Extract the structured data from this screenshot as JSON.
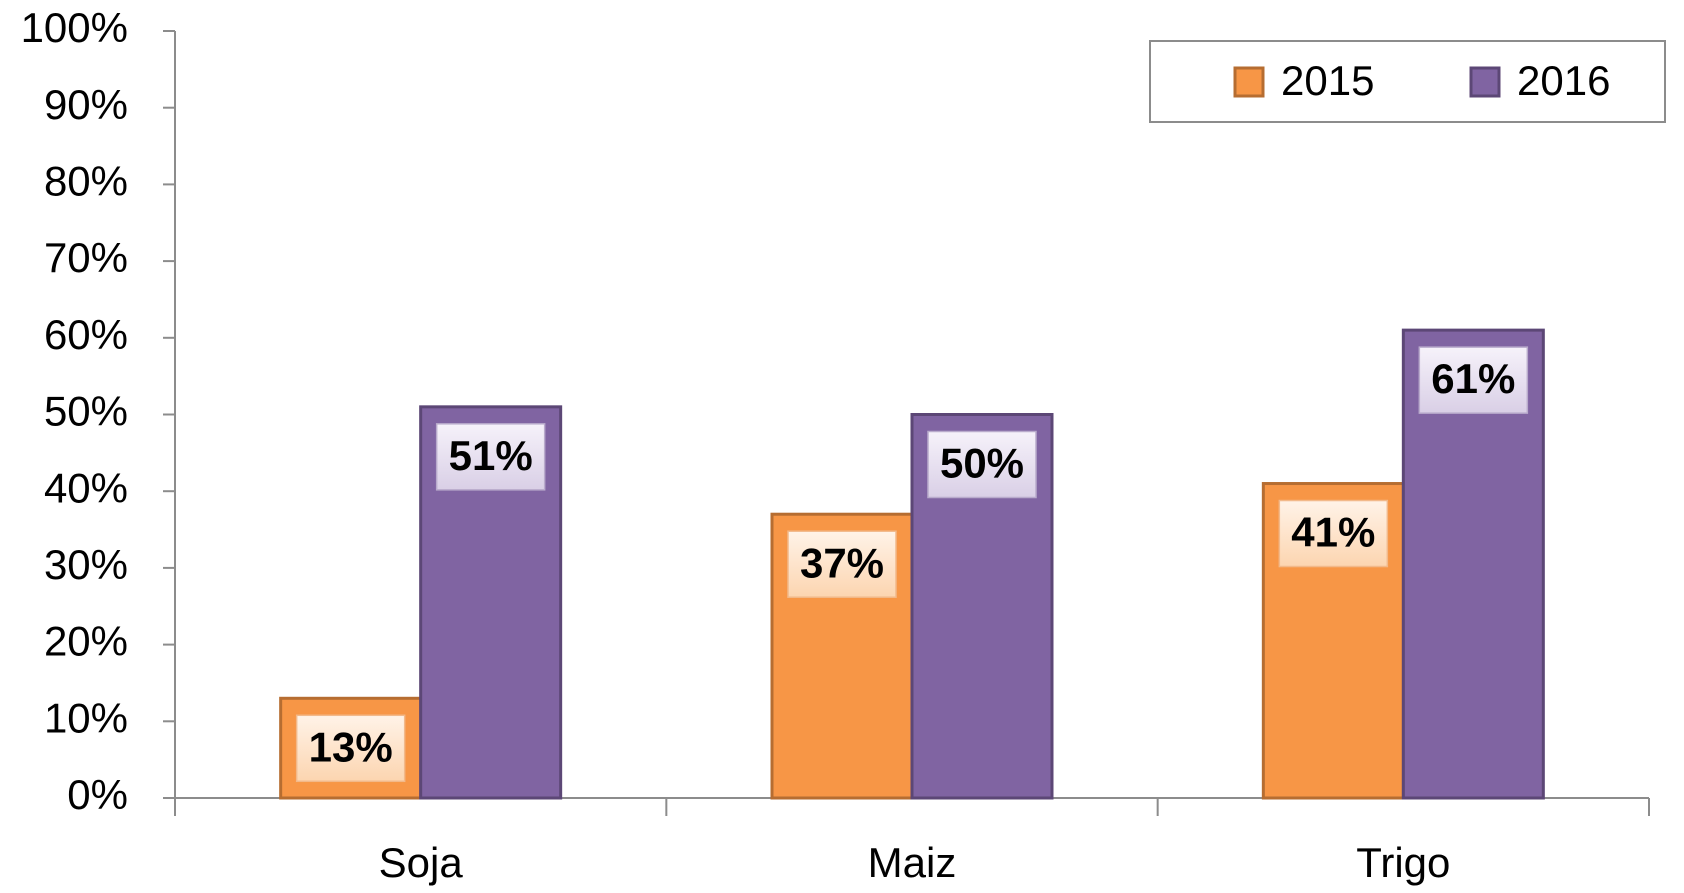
{
  "chart_data": {
    "type": "bar",
    "categories": [
      "Soja",
      "Maiz",
      "Trigo"
    ],
    "series": [
      {
        "name": "2015",
        "color": "#f79646",
        "values": [
          13,
          37,
          41
        ],
        "value_labels": [
          "13%",
          "37%",
          "41%"
        ]
      },
      {
        "name": "2016",
        "color": "#8064a2",
        "values": [
          51,
          50,
          61
        ],
        "value_labels": [
          "51%",
          "50%",
          "61%"
        ]
      }
    ],
    "ylim": [
      0,
      100
    ],
    "yticks": [
      {
        "value": 0,
        "label": "0%"
      },
      {
        "value": 10,
        "label": "10%"
      },
      {
        "value": 20,
        "label": "20%"
      },
      {
        "value": 30,
        "label": "30%"
      },
      {
        "value": 40,
        "label": "40%"
      },
      {
        "value": 50,
        "label": "50%"
      },
      {
        "value": 60,
        "label": "60%"
      },
      {
        "value": 70,
        "label": "70%"
      },
      {
        "value": 80,
        "label": "80%"
      },
      {
        "value": 90,
        "label": "90%"
      },
      {
        "value": 100,
        "label": "100%"
      }
    ],
    "legend": "top-right"
  }
}
